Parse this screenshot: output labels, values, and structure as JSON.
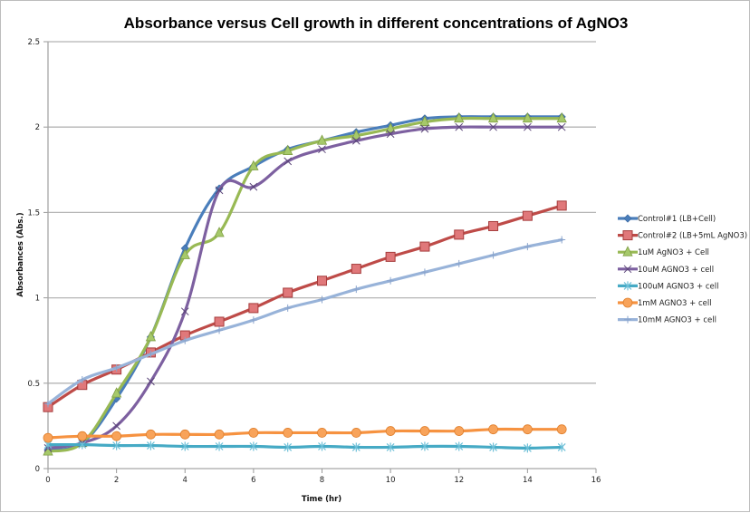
{
  "chart_data": {
    "type": "line",
    "title": "Absorbance versus Cell growth in different concentrations of AgNO3",
    "xlabel": "Time (hr)",
    "ylabel": "Absorbances (Abs.)",
    "xlim": [
      0,
      16
    ],
    "ylim": [
      0,
      2.5
    ],
    "xticks": [
      "0",
      "2",
      "4",
      "6",
      "8",
      "10",
      "12",
      "14",
      "16"
    ],
    "xtick_values": [
      0,
      2,
      4,
      6,
      8,
      10,
      12,
      14,
      16
    ],
    "yticks": [
      "0",
      "0.5",
      "1",
      "1.5",
      "2",
      "2.5"
    ],
    "ytick_values": [
      0,
      0.5,
      1,
      1.5,
      2,
      2.5
    ],
    "grid": "horizontal",
    "legend_position": "right",
    "smoothed": true,
    "x": [
      0,
      1,
      2,
      3,
      4,
      5,
      6,
      7,
      8,
      9,
      10,
      11,
      12,
      13,
      14,
      15
    ],
    "series": [
      {
        "name": "Control#1 (LB+Cell)",
        "color": "#4a7ebb",
        "marker": "diamond",
        "values": [
          0.11,
          0.15,
          0.41,
          0.77,
          1.29,
          1.64,
          1.77,
          1.87,
          1.92,
          1.97,
          2.01,
          2.05,
          2.06,
          2.06,
          2.06,
          2.06
        ]
      },
      {
        "name": "Control#2 (LB+5mL AgNO3)",
        "color": "#be4b48",
        "marker": "square",
        "values": [
          0.36,
          0.49,
          0.58,
          0.68,
          0.78,
          0.86,
          0.94,
          1.03,
          1.1,
          1.17,
          1.24,
          1.3,
          1.37,
          1.42,
          1.48,
          1.54
        ]
      },
      {
        "name": "1uM AgNO3 + Cell",
        "color": "#98b954",
        "marker": "triangle",
        "values": [
          0.1,
          0.15,
          0.44,
          0.77,
          1.25,
          1.38,
          1.77,
          1.86,
          1.92,
          1.95,
          1.99,
          2.03,
          2.05,
          2.05,
          2.05,
          2.05
        ]
      },
      {
        "name": "10uM AGNO3 + cell",
        "color": "#7d60a0",
        "marker": "x",
        "values": [
          0.12,
          0.15,
          0.25,
          0.51,
          0.92,
          1.63,
          1.65,
          1.8,
          1.87,
          1.92,
          1.96,
          1.99,
          2.0,
          2.0,
          2.0,
          2.0
        ]
      },
      {
        "name": "100uM AGNO3 + cell",
        "color": "#46aac5",
        "marker": "star",
        "values": [
          0.14,
          0.14,
          0.135,
          0.135,
          0.13,
          0.13,
          0.13,
          0.125,
          0.13,
          0.125,
          0.125,
          0.13,
          0.13,
          0.125,
          0.12,
          0.125
        ]
      },
      {
        "name": "1mM AGNO3 + cell",
        "color": "#f69240",
        "marker": "circle",
        "values": [
          0.18,
          0.19,
          0.19,
          0.2,
          0.2,
          0.2,
          0.21,
          0.21,
          0.21,
          0.21,
          0.22,
          0.22,
          0.22,
          0.23,
          0.23,
          0.23
        ]
      },
      {
        "name": "10mM AGNO3 + cell",
        "color": "#98b3d9",
        "marker": "plus",
        "values": [
          0.38,
          0.52,
          0.59,
          0.67,
          0.75,
          0.81,
          0.87,
          0.94,
          0.99,
          1.05,
          1.1,
          1.15,
          1.2,
          1.25,
          1.3,
          1.34
        ]
      }
    ]
  }
}
